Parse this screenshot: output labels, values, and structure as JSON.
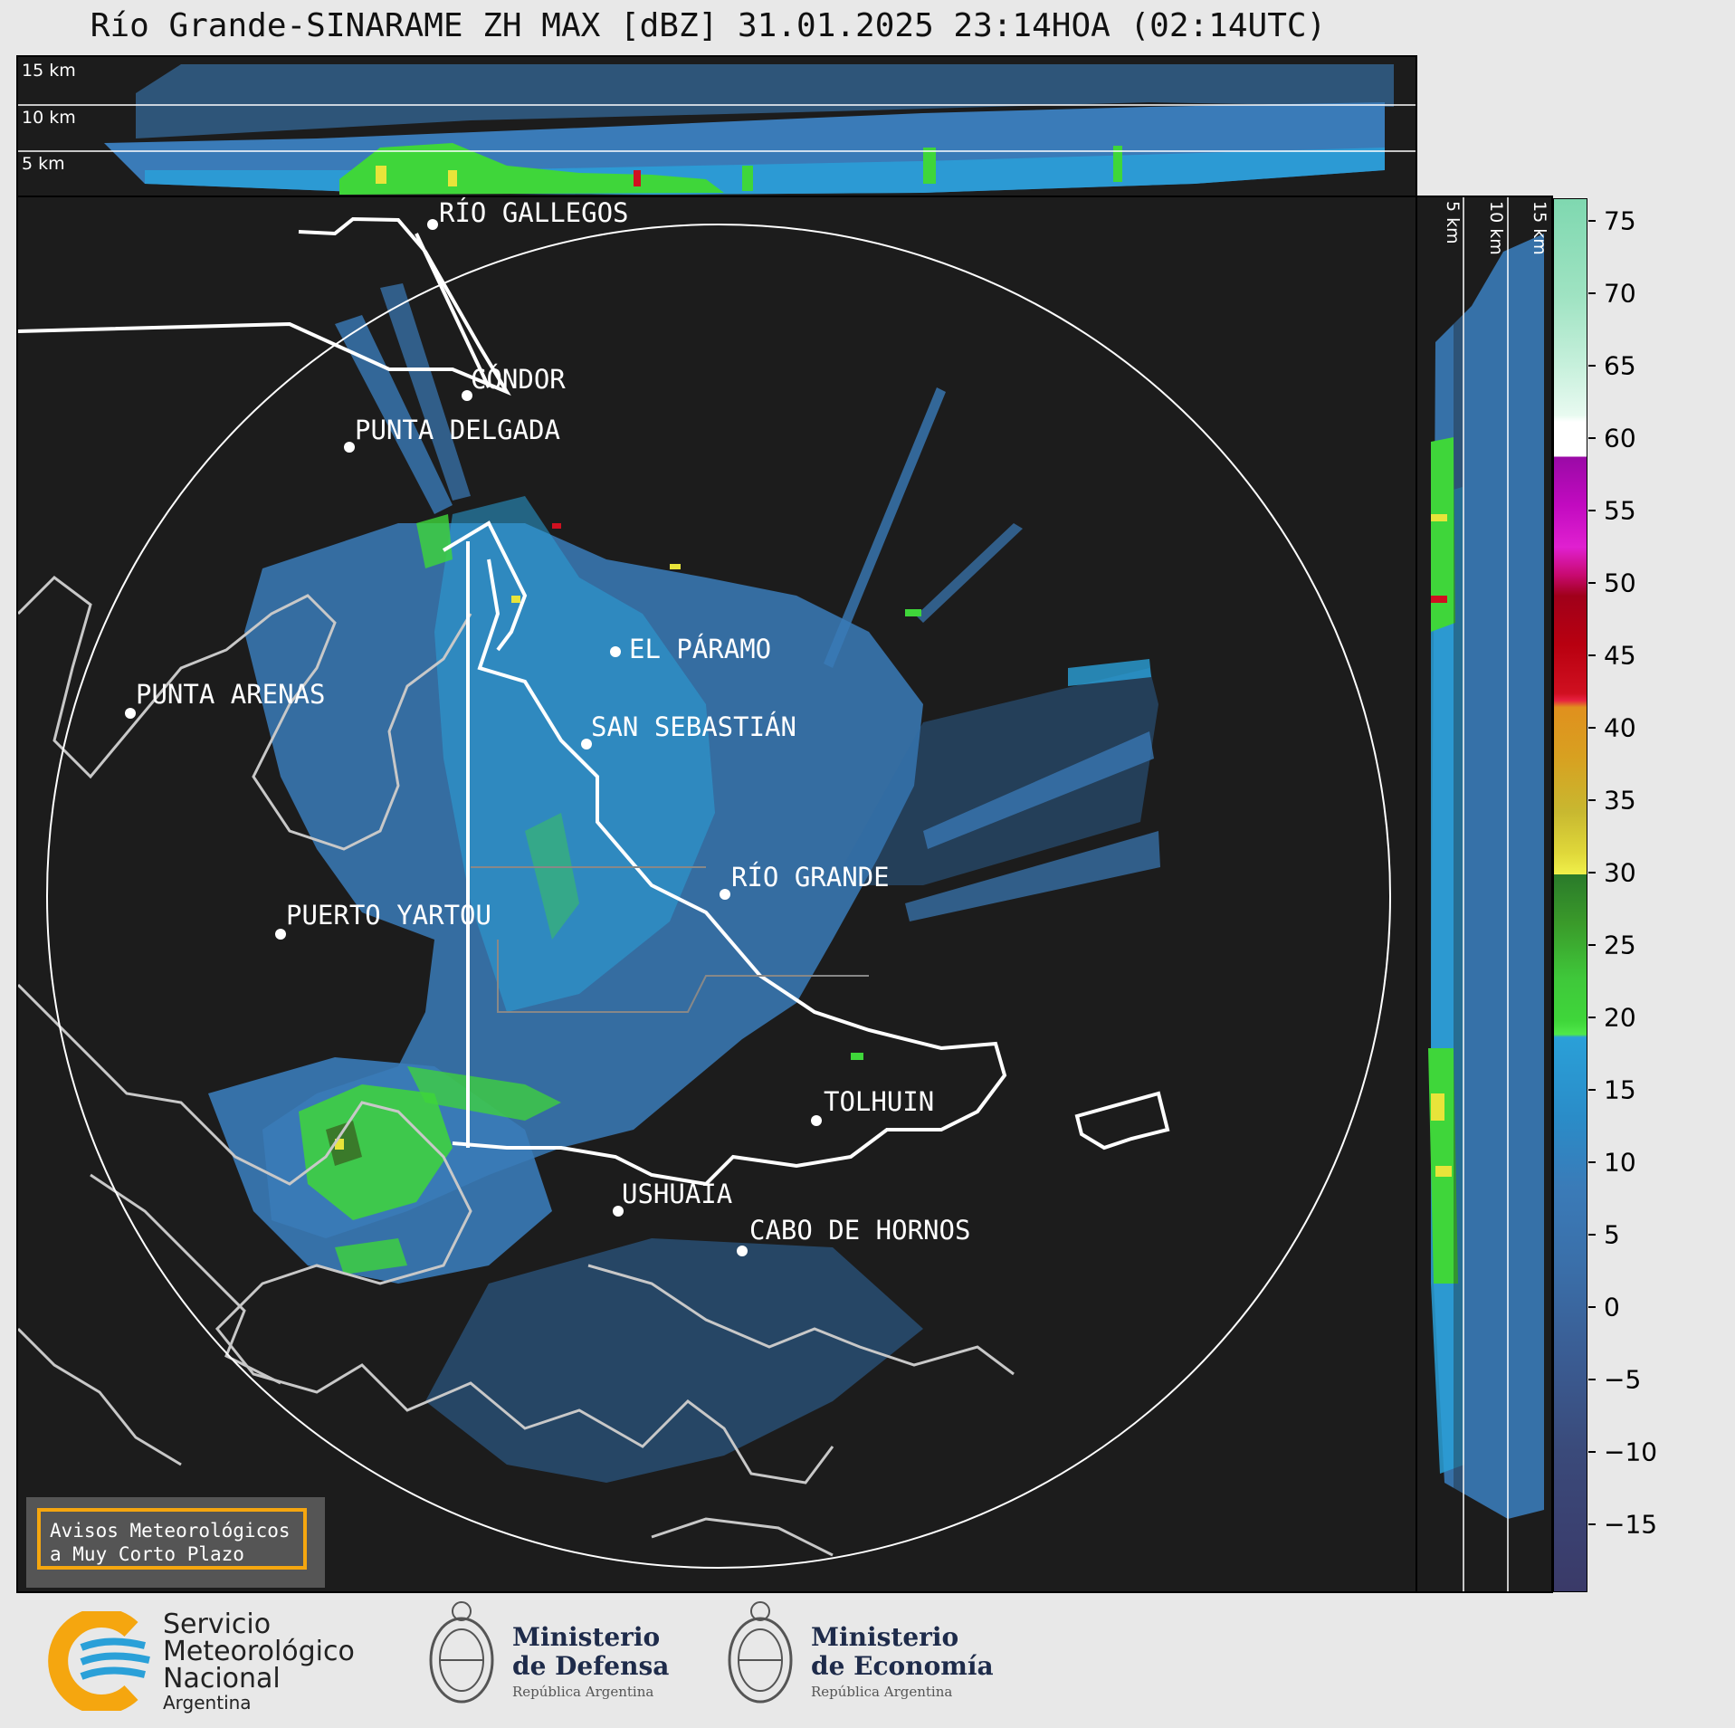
{
  "title": "Río Grande-SINARAME ZH MAX [dBZ] 31.01.2025 23:14HOA (02:14UTC)",
  "top_profile": {
    "height_labels": [
      "15 km",
      "10 km",
      "5 km"
    ]
  },
  "side_profile": {
    "height_labels": [
      "5 km",
      "10 km",
      "15 km"
    ]
  },
  "cities": [
    {
      "name": "RÍO GALLEGOS"
    },
    {
      "name": "CÓNDOR"
    },
    {
      "name": "PUNTA DELGADA"
    },
    {
      "name": "EL PÁRAMO"
    },
    {
      "name": "PUNTA ARENAS"
    },
    {
      "name": "SAN SEBASTIÁN"
    },
    {
      "name": "RÍO GRANDE"
    },
    {
      "name": "PUERTO YARTOU"
    },
    {
      "name": "TOLHUIN"
    },
    {
      "name": "USHUAIA"
    },
    {
      "name": "CABO DE HORNOS"
    }
  ],
  "colorbar": {
    "unit": "dBZ",
    "ticks": [
      "75",
      "70",
      "65",
      "60",
      "55",
      "50",
      "45",
      "40",
      "35",
      "30",
      "25",
      "20",
      "15",
      "10",
      "5",
      "0",
      "−5",
      "−10",
      "−15"
    ],
    "colors": {
      "green": "#3fd63a",
      "yellow": "#e8e43a",
      "orange": "#e0901e",
      "red": "#d01020",
      "magenta": "#e020d0",
      "light_blue": "#2aa0d8",
      "mid_blue": "#3a7bb8",
      "dark_blue": "#3a4070"
    }
  },
  "alert_box": {
    "line1": "Avisos Meteorológicos",
    "line2": "a Muy Corto Plazo",
    "border_color": "#f5a60f"
  },
  "logos": {
    "smn": {
      "line1": "Servicio",
      "line2": "Meteorológico",
      "line3": "Nacional",
      "line4": "Argentina"
    },
    "defensa": {
      "line1": "Ministerio",
      "line2": "de Defensa",
      "line3": "República Argentina"
    },
    "economia": {
      "line1": "Ministerio",
      "line2": "de Economía",
      "line3": "República Argentina"
    }
  }
}
